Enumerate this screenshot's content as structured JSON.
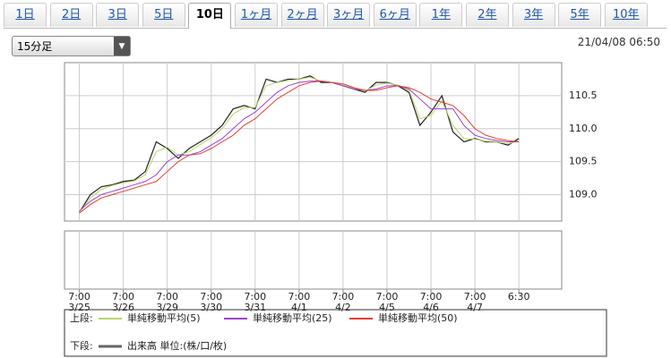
{
  "tabs": [
    "1日",
    "2日",
    "3日",
    "5日",
    "10日",
    "1ヶ月",
    "2ヶ月",
    "3ヶ月",
    "6ヶ月",
    "1年",
    "2年",
    "3年",
    "5年",
    "10年"
  ],
  "selected_tab": 4,
  "interval_select": "15分足",
  "timestamp": "21/04/08 06:50",
  "chart_data": {
    "type": "line",
    "x": [
      0,
      1,
      2,
      3,
      4,
      5,
      6,
      7,
      8,
      9,
      10,
      11,
      12,
      13,
      14,
      15,
      16,
      17,
      18,
      19,
      20,
      21,
      22,
      23,
      24,
      25,
      26,
      27,
      28,
      29,
      30,
      31,
      32,
      33,
      34,
      35,
      36,
      37,
      38,
      39,
      40
    ],
    "xlim": [
      -1.35,
      43.9
    ],
    "xticks": [
      {
        "value": 0,
        "label": "7:00"
      },
      {
        "value": 4,
        "label": "7:00"
      },
      {
        "value": 8,
        "label": "7:00"
      },
      {
        "value": 12,
        "label": "7:00"
      },
      {
        "value": 16,
        "label": "7:00"
      },
      {
        "value": 20,
        "label": "7:00"
      },
      {
        "value": 24,
        "label": "7:00"
      },
      {
        "value": 28,
        "label": "7:00"
      },
      {
        "value": 32,
        "label": "7:00"
      },
      {
        "value": 36,
        "label": "7:00"
      },
      {
        "value": 40,
        "label": "6:30"
      }
    ],
    "xtick_dates": [
      "3/25",
      "3/26",
      "3/29",
      "3/30",
      "3/31",
      "4/1",
      "4/2",
      "4/5",
      "4/6",
      "4/7",
      null
    ],
    "ylim": [
      108.6,
      111.0
    ],
    "yticks": [
      {
        "value": 109,
        "label": "109.0"
      },
      {
        "value": 109.5,
        "label": "109.5"
      },
      {
        "value": 110,
        "label": "110.0"
      },
      {
        "value": 110.5,
        "label": "110.5"
      }
    ],
    "grid": true,
    "series": [
      {
        "color": "#222222",
        "values": [
          108.73,
          109.0,
          109.12,
          109.15,
          109.2,
          109.22,
          109.35,
          109.8,
          109.7,
          109.55,
          109.7,
          109.8,
          109.9,
          110.05,
          110.3,
          110.35,
          110.3,
          110.75,
          110.7,
          110.75,
          110.75,
          110.8,
          110.7,
          110.7,
          110.65,
          110.6,
          110.55,
          110.7,
          110.7,
          110.65,
          110.55,
          110.05,
          110.25,
          110.5,
          109.95,
          109.8,
          109.85,
          109.8,
          109.8,
          109.75,
          109.85
        ]
      },
      {
        "name": "単純移動平均(5)",
        "color": "#b8d66a",
        "values": [
          108.73,
          108.95,
          109.08,
          109.14,
          109.18,
          109.21,
          109.3,
          109.65,
          109.72,
          109.6,
          109.65,
          109.76,
          109.86,
          110.0,
          110.22,
          110.32,
          110.32,
          110.65,
          110.7,
          110.73,
          110.75,
          110.78,
          110.72,
          110.7,
          110.66,
          110.61,
          110.57,
          110.66,
          110.69,
          110.66,
          110.58,
          110.15,
          110.2,
          110.42,
          110.05,
          109.85,
          109.84,
          109.81,
          109.8,
          109.77,
          109.82
        ]
      },
      {
        "name": "単純移動平均(25)",
        "color": "#a040d0",
        "values": [
          108.75,
          108.9,
          109.0,
          109.05,
          109.1,
          109.15,
          109.2,
          109.3,
          109.5,
          109.6,
          109.6,
          109.65,
          109.75,
          109.85,
          110.0,
          110.15,
          110.25,
          110.4,
          110.55,
          110.65,
          110.7,
          110.72,
          110.72,
          110.7,
          110.65,
          110.6,
          110.58,
          110.6,
          110.65,
          110.65,
          110.6,
          110.45,
          110.3,
          110.3,
          110.3,
          110.05,
          109.9,
          109.85,
          109.82,
          109.8,
          109.8
        ]
      },
      {
        "name": "単純移動平均(50)",
        "color": "#e04030",
        "values": [
          108.72,
          108.85,
          108.95,
          109.0,
          109.05,
          109.1,
          109.15,
          109.2,
          109.35,
          109.5,
          109.6,
          109.62,
          109.7,
          109.8,
          109.9,
          110.05,
          110.15,
          110.3,
          110.45,
          110.55,
          110.65,
          110.7,
          110.72,
          110.7,
          110.68,
          110.62,
          110.58,
          110.58,
          110.62,
          110.65,
          110.62,
          110.55,
          110.45,
          110.4,
          110.35,
          110.2,
          110.0,
          109.9,
          109.85,
          109.82,
          109.8
        ]
      }
    ]
  },
  "legend": {
    "upper_label": "上段:",
    "lower_label": "下段:",
    "volume_label": "出来高 単位:(株/口/枚)",
    "volume_color": "#666666"
  }
}
